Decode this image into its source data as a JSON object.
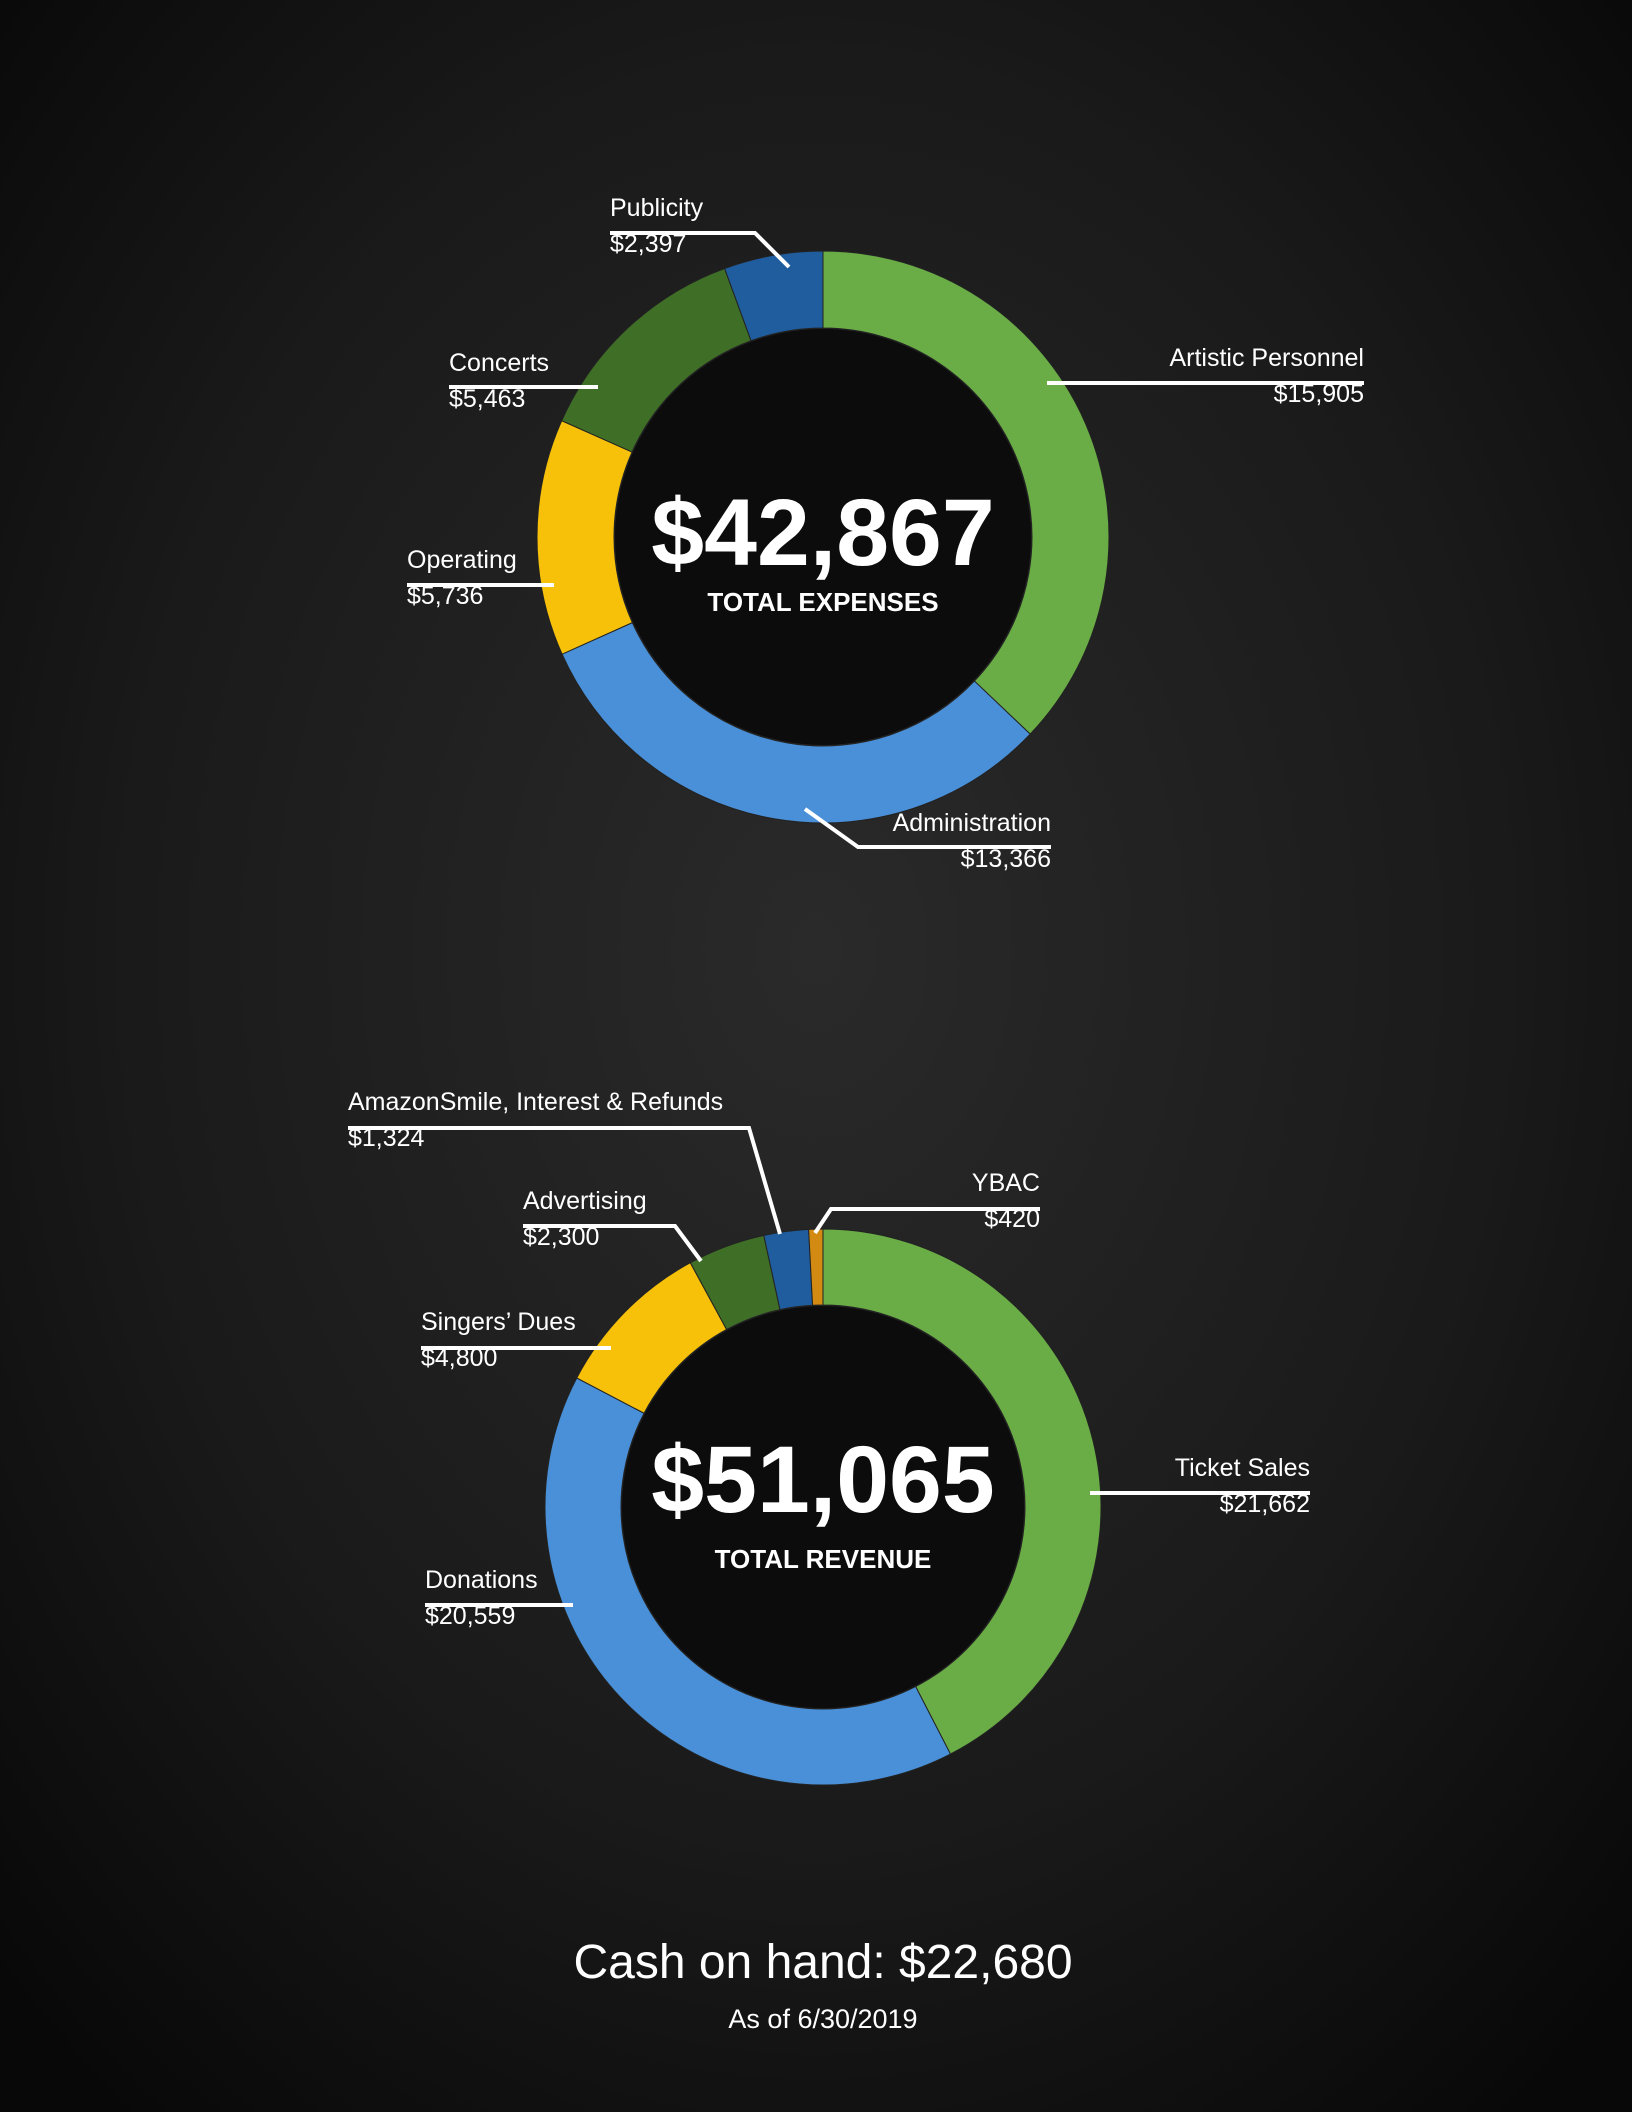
{
  "chart_data": [
    {
      "type": "pie",
      "donut": true,
      "center_value": "$42,867",
      "center_label": "TOTAL EXPENSES",
      "categories": [
        "Artistic Personnel",
        "Administration",
        "Operating",
        "Concerts",
        "Publicity"
      ],
      "values": [
        15905,
        13366,
        5736,
        5463,
        2397
      ],
      "value_labels": [
        "$15,905",
        "$13,366",
        "$5,736",
        "$5,463",
        "$2,397"
      ],
      "colors": [
        "#6aac45",
        "#4a90d8",
        "#f7c10a",
        "#3f6e27",
        "#1f5d9f"
      ]
    },
    {
      "type": "pie",
      "donut": true,
      "center_value": "$51,065",
      "center_label": "TOTAL REVENUE",
      "categories": [
        "Ticket Sales",
        "Donations",
        "Singers’ Dues",
        "Advertising",
        "AmazonSmile, Interest & Refunds",
        "YBAC"
      ],
      "values": [
        21662,
        20559,
        4800,
        2300,
        1324,
        420
      ],
      "value_labels": [
        "$21,662",
        "$20,559",
        "$4,800",
        "$2,300",
        "$1,324",
        "$420"
      ],
      "colors": [
        "#6aac45",
        "#4a90d8",
        "#f7c10a",
        "#3f6e27",
        "#1f5d9f",
        "#d28a12"
      ]
    }
  ],
  "footer": {
    "cash": "Cash on hand: $22,680",
    "date": "As of 6/30/2019"
  }
}
